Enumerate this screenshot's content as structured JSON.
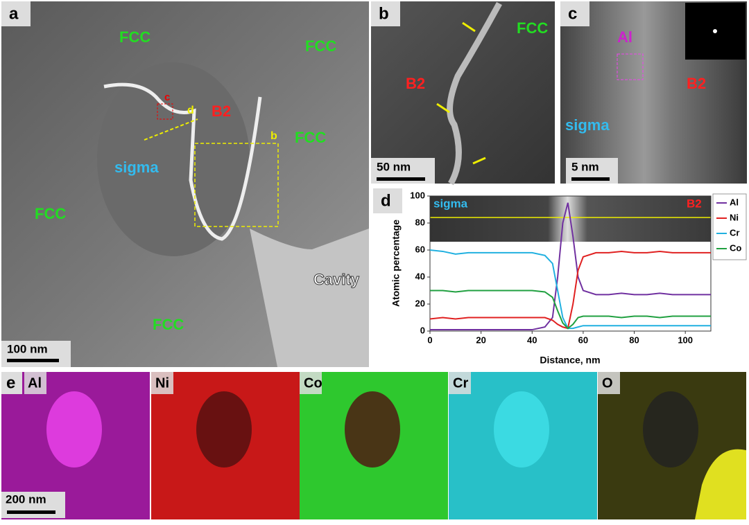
{
  "panels": {
    "a": {
      "letter": "a",
      "labels": [
        "FCC",
        "FCC",
        "B2",
        "sigma",
        "FCC",
        "FCC",
        "FCC",
        "Cavity"
      ],
      "markers": [
        "c",
        "d",
        "b"
      ],
      "scale_bar": "100 nm"
    },
    "b": {
      "letter": "b",
      "labels": [
        "FCC",
        "B2"
      ],
      "scale_bar": "50 nm"
    },
    "c": {
      "letter": "c",
      "labels": [
        "Al",
        "B2",
        "sigma"
      ],
      "scale_bar": "5 nm"
    },
    "e": {
      "letter": "e",
      "maps": [
        "Al",
        "Ni",
        "Co",
        "Cr",
        "O"
      ],
      "scale_bar": "200 nm"
    }
  },
  "chart_data": {
    "type": "line",
    "letter": "d",
    "inset_labels": [
      "sigma",
      "B2"
    ],
    "x_label": "Distance, nm",
    "y_label": "Atomic percentage",
    "x": [
      0,
      5,
      10,
      15,
      20,
      25,
      30,
      35,
      40,
      45,
      48,
      50,
      52,
      54,
      56,
      58,
      60,
      65,
      70,
      75,
      80,
      85,
      90,
      95,
      100,
      105,
      110
    ],
    "series": [
      {
        "name": "Al",
        "color": "#7030a0",
        "values": [
          1,
          1,
          1,
          1,
          1,
          1,
          1,
          1,
          1,
          3,
          10,
          40,
          80,
          95,
          70,
          40,
          30,
          27,
          27,
          28,
          27,
          27,
          28,
          27,
          27,
          27,
          27
        ]
      },
      {
        "name": "Ni",
        "color": "#e02020",
        "values": [
          9,
          10,
          9,
          10,
          10,
          10,
          10,
          10,
          10,
          10,
          8,
          5,
          3,
          2,
          20,
          45,
          55,
          58,
          58,
          59,
          58,
          58,
          59,
          58,
          58,
          58,
          58
        ]
      },
      {
        "name": "Cr",
        "color": "#20b0e0",
        "values": [
          60,
          59,
          57,
          58,
          58,
          58,
          58,
          58,
          58,
          56,
          50,
          30,
          10,
          2,
          2,
          3,
          4,
          4,
          4,
          4,
          4,
          4,
          4,
          4,
          4,
          4,
          4
        ]
      },
      {
        "name": "Co",
        "color": "#20a040",
        "values": [
          30,
          30,
          29,
          30,
          30,
          30,
          30,
          30,
          30,
          29,
          25,
          15,
          6,
          2,
          5,
          10,
          11,
          11,
          11,
          10,
          11,
          11,
          10,
          11,
          11,
          11,
          11
        ]
      }
    ],
    "xlim": [
      0,
      110
    ],
    "xticks": [
      0,
      20,
      40,
      60,
      80,
      100
    ],
    "ylim": [
      0,
      100
    ],
    "yticks": [
      0,
      20,
      40,
      60,
      80,
      100
    ],
    "legend": "right"
  }
}
